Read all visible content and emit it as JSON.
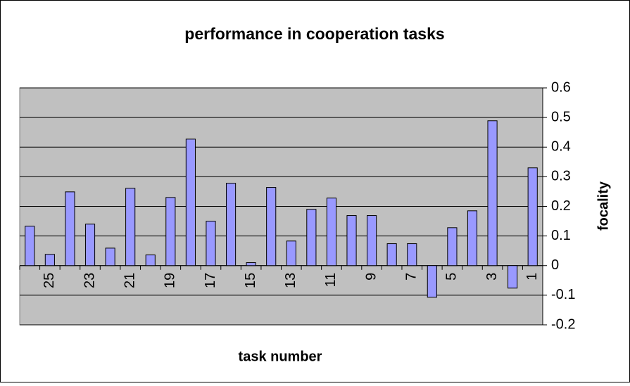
{
  "chart_data": {
    "type": "bar",
    "title": "performance in cooperation tasks",
    "x_label": "task number",
    "y_label": "focality",
    "categories": [
      null,
      25,
      null,
      23,
      null,
      21,
      null,
      19,
      null,
      17,
      null,
      15,
      null,
      13,
      null,
      11,
      null,
      9,
      null,
      7,
      null,
      5,
      null,
      3,
      null,
      1
    ],
    "values": [
      0.133,
      0.038,
      0.249,
      0.14,
      0.059,
      0.261,
      0.036,
      0.23,
      0.427,
      0.15,
      0.278,
      0.01,
      0.264,
      0.083,
      0.19,
      0.228,
      0.169,
      0.169,
      0.074,
      0.074,
      -0.107,
      0.128,
      0.185,
      0.489,
      -0.076,
      0.33
    ],
    "color": "#9999ff",
    "ylim": [
      -0.2,
      0.6
    ],
    "yticks": [
      -0.2,
      -0.1,
      0,
      0.1,
      0.2,
      0.3,
      0.4,
      0.5,
      0.6
    ],
    "grid": true
  }
}
